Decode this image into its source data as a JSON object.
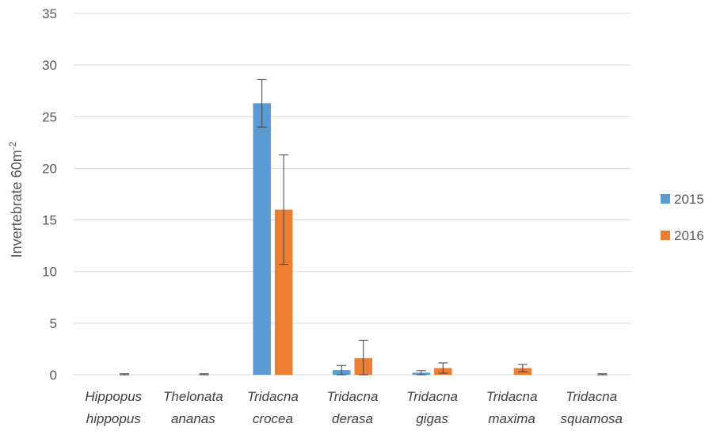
{
  "chart_data": {
    "type": "bar",
    "categories": [
      [
        "Hippopus",
        "hippopus"
      ],
      [
        "Thelonata",
        "ananas"
      ],
      [
        "Tridacna",
        "crocea"
      ],
      [
        "Tridacna",
        "derasa"
      ],
      [
        "Tridacna",
        "gigas"
      ],
      [
        "Tridacna",
        "maxima"
      ],
      [
        "Tridacna",
        "squamosa"
      ]
    ],
    "series": [
      {
        "name": "2015",
        "color": "#5b9bd5",
        "values": [
          0,
          0,
          26.3,
          0.45,
          0.2,
          0,
          0
        ],
        "errors": [
          0,
          0,
          2.3,
          0.45,
          0.2,
          0,
          0
        ]
      },
      {
        "name": "2016",
        "color": "#ed7d31",
        "values": [
          0,
          0,
          16.0,
          1.6,
          0.65,
          0.65,
          0
        ],
        "errors": [
          0.1,
          0.1,
          5.3,
          1.75,
          0.5,
          0.35,
          0.1
        ]
      }
    ],
    "ylabel": "Invertebrate 60m",
    "ylabel_superscript": "-2",
    "ylim": [
      0,
      35
    ],
    "yticks": [
      0,
      5,
      10,
      15,
      20,
      25,
      30,
      35
    ],
    "grid": true,
    "legend_position": "right"
  }
}
